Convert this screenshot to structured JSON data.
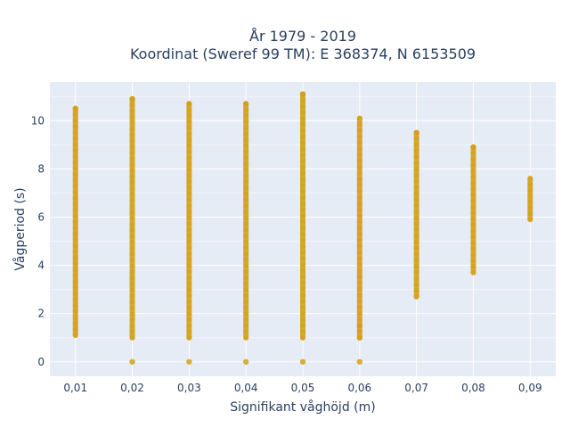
{
  "chart_data": {
    "type": "scatter",
    "title": [
      "År 1979 - 2019",
      "Koordinat (Sweref 99 TM): E 368374, N 6153509"
    ],
    "xlabel": "Signifikant våghöjd (m)",
    "ylabel": "Vågperiod (s)",
    "xlim": [
      0.0055,
      0.0945
    ],
    "ylim": [
      -0.6,
      11.6
    ],
    "x_ticks": [
      "0,01",
      "0,02",
      "0,03",
      "0,04",
      "0,05",
      "0,06",
      "0,07",
      "0,08",
      "0,09"
    ],
    "y_ticks": [
      "0",
      "2",
      "4",
      "6",
      "8",
      "10"
    ],
    "grid": true,
    "marker_color": "#d4a017",
    "background_color": "#e5ecf6",
    "series": [
      {
        "x": 0.01,
        "y_range": [
          1.1,
          10.5
        ],
        "y_extra": [
          10.5
        ]
      },
      {
        "x": 0.02,
        "y_range": [
          1.0,
          10.9
        ],
        "y_extra": [
          0.0,
          10.9
        ]
      },
      {
        "x": 0.03,
        "y_range": [
          1.0,
          10.7
        ],
        "y_extra": [
          0.0,
          10.7
        ]
      },
      {
        "x": 0.04,
        "y_range": [
          1.0,
          10.7
        ],
        "y_extra": [
          0.0,
          10.7
        ]
      },
      {
        "x": 0.05,
        "y_range": [
          1.0,
          11.1
        ],
        "y_extra": [
          0.0,
          11.1
        ]
      },
      {
        "x": 0.06,
        "y_range": [
          1.0,
          10.1
        ],
        "y_extra": [
          0.0,
          1.0,
          1.5
        ]
      },
      {
        "x": 0.07,
        "y_range": [
          2.7,
          9.5
        ],
        "y_extra": [
          9.5
        ]
      },
      {
        "x": 0.08,
        "y_range": [
          3.7,
          8.9
        ],
        "y_extra": [
          8.9
        ]
      },
      {
        "x": 0.09,
        "y_range": [
          5.9,
          7.6
        ],
        "y_extra": []
      }
    ]
  }
}
